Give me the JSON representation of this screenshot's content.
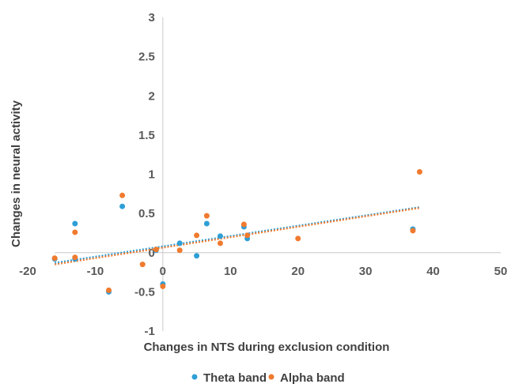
{
  "chart_data": {
    "type": "scatter",
    "xlabel": "Changes in NTS during exclusion condition",
    "ylabel": "Changes in neural activity",
    "xlim": [
      -20,
      50
    ],
    "ylim": [
      -1,
      3
    ],
    "x_ticks": [
      "-20",
      "-10",
      "0",
      "10",
      "20",
      "30",
      "40",
      "50"
    ],
    "y_ticks": [
      "-1",
      "-0.5",
      "0",
      "0.5",
      "1",
      "1.5",
      "2",
      "2.5",
      "3"
    ],
    "grid": false,
    "legend_position": "bottom",
    "series": [
      {
        "name": "Theta band",
        "color": "#2e9fd6",
        "points": [
          {
            "x": -16,
            "y": -0.08
          },
          {
            "x": -13,
            "y": 0.37
          },
          {
            "x": -13,
            "y": -0.08
          },
          {
            "x": -8,
            "y": -0.5
          },
          {
            "x": -6,
            "y": 0.59
          },
          {
            "x": -1,
            "y": 0.03
          },
          {
            "x": 0,
            "y": -0.4
          },
          {
            "x": 2.5,
            "y": 0.12
          },
          {
            "x": 5,
            "y": -0.04
          },
          {
            "x": 6.5,
            "y": 0.37
          },
          {
            "x": 8.5,
            "y": 0.21
          },
          {
            "x": 12,
            "y": 0.33
          },
          {
            "x": 12.5,
            "y": 0.18
          },
          {
            "x": 37,
            "y": 0.3
          }
        ],
        "trendline": {
          "x1": -16,
          "y1": -0.13,
          "x2": 38,
          "y2": 0.58
        }
      },
      {
        "name": "Alpha band",
        "color": "#f07a2e",
        "points": [
          {
            "x": -16,
            "y": -0.07
          },
          {
            "x": -13,
            "y": 0.26
          },
          {
            "x": -13,
            "y": -0.06
          },
          {
            "x": -8,
            "y": -0.48
          },
          {
            "x": -6,
            "y": 0.73
          },
          {
            "x": -3,
            "y": -0.15
          },
          {
            "x": -1,
            "y": 0.04
          },
          {
            "x": 0,
            "y": -0.43
          },
          {
            "x": 2.5,
            "y": 0.03
          },
          {
            "x": 5,
            "y": 0.22
          },
          {
            "x": 6.5,
            "y": 0.47
          },
          {
            "x": 8.5,
            "y": 0.12
          },
          {
            "x": 12,
            "y": 0.36
          },
          {
            "x": 12.5,
            "y": 0.22
          },
          {
            "x": 20,
            "y": 0.18
          },
          {
            "x": 37,
            "y": 0.28
          },
          {
            "x": 38,
            "y": 1.03
          }
        ],
        "trendline": {
          "x1": -16,
          "y1": -0.15,
          "x2": 38,
          "y2": 0.57
        }
      }
    ]
  }
}
